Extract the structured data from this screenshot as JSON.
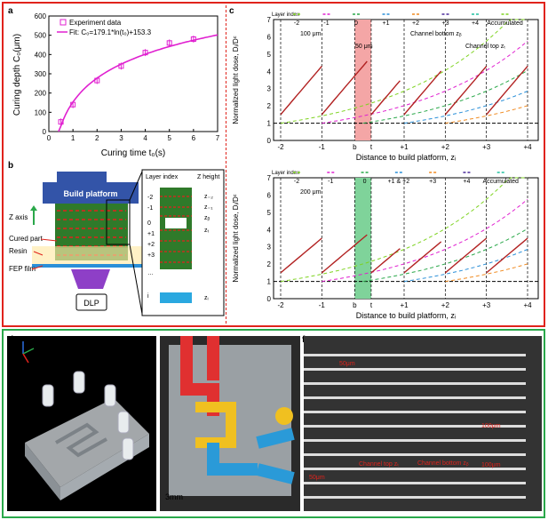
{
  "panels": {
    "a": "a",
    "b": "b",
    "c": "c",
    "d": "d",
    "e": "e",
    "f": "f"
  },
  "chart_data": [
    {
      "type": "scatter",
      "panel": "a",
      "legend": [
        "Experiment data",
        "Fit: C₀=179.1*ln(t₀)+153.3"
      ],
      "x": [
        0.5,
        1,
        2,
        3,
        4,
        5,
        6
      ],
      "y": [
        50,
        140,
        265,
        340,
        410,
        460,
        480
      ],
      "fit": {
        "a": 179.1,
        "b": 153.3
      },
      "xlabel": "Curing time t₀(s)",
      "ylabel": "Curing depth C₀(μm)",
      "xlim": [
        0,
        7
      ],
      "ylim": [
        0,
        600
      ],
      "xticks": [
        "0",
        "1",
        "2",
        "3",
        "4",
        "5",
        "6",
        "7"
      ],
      "yticks": [
        "0",
        "100",
        "200",
        "300",
        "400",
        "500",
        "600"
      ],
      "colors": {
        "series": "#e020d0"
      }
    },
    {
      "type": "line",
      "panel": "c-top",
      "legend_title": "Layer index",
      "legend": [
        "-2",
        "-1",
        "0",
        "+1",
        "+2",
        "+3",
        "+4",
        "Accumulated"
      ],
      "xlabel": "Distance to build platform, zᵢ",
      "ylabel": "Normalized light dose, Dᵢ/Dᶜ",
      "xticks": [
        "-2",
        "-1",
        "b",
        "t",
        "+1",
        "+2",
        "+3",
        "+4"
      ],
      "yticks": [
        "0",
        "1",
        "2",
        "3",
        "4",
        "5",
        "6",
        "7"
      ],
      "ylim": [
        0,
        7
      ],
      "annotations": [
        "100 μm",
        "50 μm",
        "Channel bottom zᵦ",
        "Channel top zₜ"
      ],
      "band_color": "#f4a6a6"
    },
    {
      "type": "line",
      "panel": "c-bottom",
      "legend_title": "Layer index",
      "legend": [
        "-2",
        "-1",
        "0",
        "+1 & +2",
        "+3",
        "+4",
        "Accumulated"
      ],
      "xlabel": "Distance to build platform, zᵢ",
      "ylabel": "Normalized light dose, Dᵢ/Dᶜ",
      "xticks": [
        "-2",
        "-1",
        "b",
        "t",
        "+1",
        "+2",
        "+3",
        "+4"
      ],
      "yticks": [
        "0",
        "1",
        "2",
        "3",
        "4",
        "5",
        "6",
        "7"
      ],
      "ylim": [
        0,
        7
      ],
      "annotations": [
        "200 μm"
      ],
      "band_color": "#7fd39a"
    }
  ],
  "b": {
    "build_platform": "Build platform",
    "z_axis": "Z axis",
    "cured_part": "Cured part",
    "resin": "Resin",
    "fep": "FEP film",
    "dlp": "DLP",
    "layer_index": "Layer index",
    "z_height": "Z height",
    "layers": [
      "-2",
      "-1",
      "0",
      "+1",
      "+2",
      "+3",
      "…",
      "i"
    ],
    "zlabels": [
      "z₋₂",
      "z₋₁",
      "zᵦ",
      "zₜ",
      "zᵢ"
    ]
  },
  "e": {
    "scale": "3mm"
  },
  "f": {
    "labels": [
      "50μm",
      "100μm",
      "50μm",
      "Channel top zₜ",
      "Channel bottom zᵦ",
      "100μm"
    ]
  }
}
